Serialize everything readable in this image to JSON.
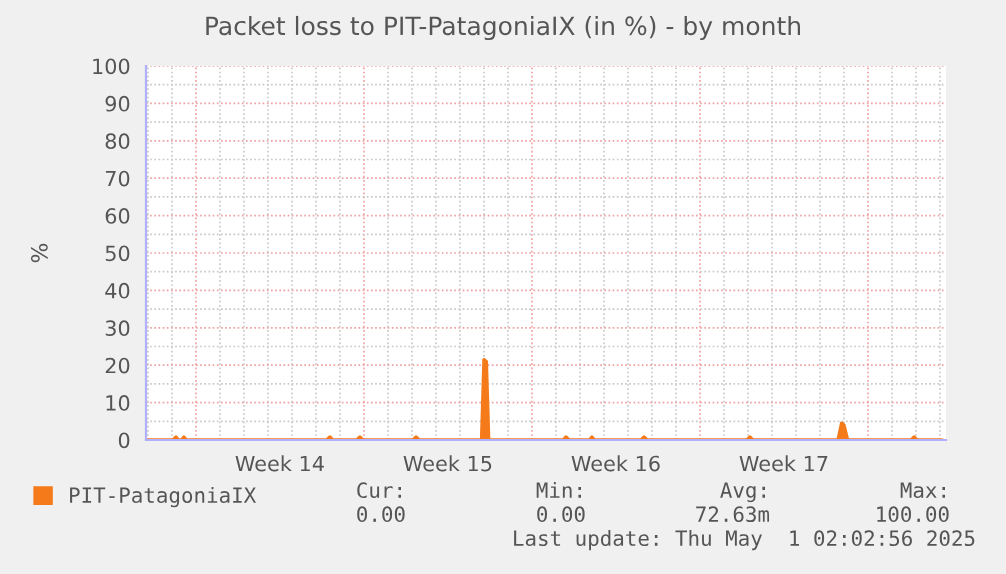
{
  "chart_data": {
    "type": "area",
    "title": "Packet loss to PIT-PatagoniaIX (in %) - by month",
    "ylabel": "%",
    "series": [
      {
        "name": "PIT-PatagoniaIX",
        "color": "#f57a1a",
        "x": [
          "2025-03-28T22:05",
          "2025-03-30T01:12",
          "2025-03-30T04:05",
          "2025-03-30T06:43",
          "2025-03-30T09:36",
          "2025-03-30T12:00",
          "2025-03-30T14:24",
          "2025-04-05T10:48",
          "2025-04-05T13:55",
          "2025-04-05T16:48",
          "2025-04-06T16:48",
          "2025-04-06T19:55",
          "2025-04-06T22:48",
          "2025-04-09T01:12",
          "2025-04-09T04:05",
          "2025-04-09T07:12",
          "2025-04-11T21:36",
          "2025-04-12T00:00",
          "2025-04-12T02:24",
          "2025-04-12T04:48",
          "2025-04-15T07:12",
          "2025-04-15T10:05",
          "2025-04-15T13:12",
          "2025-04-16T09:36",
          "2025-04-16T12:00",
          "2025-04-16T14:24",
          "2025-04-18T13:12",
          "2025-04-18T16:05",
          "2025-04-18T19:12",
          "2025-04-22T22:48",
          "2025-04-23T01:55",
          "2025-04-23T04:48",
          "2025-04-26T18:00",
          "2025-04-26T21:36",
          "2025-04-27T00:00",
          "2025-04-27T03:36",
          "2025-04-29T19:12",
          "2025-04-29T22:05",
          "2025-04-30T01:12",
          "2025-05-01T02:00"
        ],
        "values": [
          0,
          0,
          0.8,
          0,
          0,
          0.8,
          0,
          0,
          0.8,
          0,
          0,
          0.8,
          0,
          0,
          0.8,
          0,
          0,
          21.5,
          21,
          0,
          0,
          0.8,
          0,
          0,
          0.8,
          0,
          0,
          0.8,
          0,
          0,
          0.8,
          0,
          0,
          4.5,
          4,
          0,
          0,
          0.8,
          0,
          0
        ]
      }
    ],
    "xlim": [
      "2025-03-28T22:05",
      "2025-05-01T06:00"
    ],
    "xticks": [
      {
        "value": "2025-03-29",
        "label": null
      },
      {
        "value": "2025-03-30",
        "label": null
      },
      {
        "value": "2025-03-31",
        "label": null
      },
      {
        "value": "2025-04-01",
        "label": null
      },
      {
        "value": "2025-04-02",
        "label": null
      },
      {
        "value": "2025-04-03",
        "label": null
      },
      {
        "value": "2025-04-03T12:00",
        "label": "Week 14"
      },
      {
        "value": "2025-04-04",
        "label": null
      },
      {
        "value": "2025-04-05",
        "label": null
      },
      {
        "value": "2025-04-06",
        "label": null
      },
      {
        "value": "2025-04-07",
        "label": null
      },
      {
        "value": "2025-04-08",
        "label": null
      },
      {
        "value": "2025-04-09",
        "label": null
      },
      {
        "value": "2025-04-10",
        "label": null
      },
      {
        "value": "2025-04-10T12:00",
        "label": "Week 15"
      },
      {
        "value": "2025-04-11",
        "label": null
      },
      {
        "value": "2025-04-12",
        "label": null
      },
      {
        "value": "2025-04-13",
        "label": null
      },
      {
        "value": "2025-04-14",
        "label": null
      },
      {
        "value": "2025-04-15",
        "label": null
      },
      {
        "value": "2025-04-16",
        "label": null
      },
      {
        "value": "2025-04-17",
        "label": null
      },
      {
        "value": "2025-04-17T12:00",
        "label": "Week 16"
      },
      {
        "value": "2025-04-18",
        "label": null
      },
      {
        "value": "2025-04-19",
        "label": null
      },
      {
        "value": "2025-04-20",
        "label": null
      },
      {
        "value": "2025-04-21",
        "label": null
      },
      {
        "value": "2025-04-22",
        "label": null
      },
      {
        "value": "2025-04-23",
        "label": null
      },
      {
        "value": "2025-04-24",
        "label": null
      },
      {
        "value": "2025-04-24T12:00",
        "label": "Week 17"
      },
      {
        "value": "2025-04-25",
        "label": null
      },
      {
        "value": "2025-04-26",
        "label": null
      },
      {
        "value": "2025-04-27",
        "label": null
      },
      {
        "value": "2025-04-28",
        "label": null
      },
      {
        "value": "2025-04-29",
        "label": null
      },
      {
        "value": "2025-04-30",
        "label": null
      },
      {
        "value": "2025-05-01",
        "label": null
      }
    ],
    "ylim": [
      0,
      100
    ],
    "yticks": [
      0,
      {
        "value": 5,
        "label": null
      },
      10,
      {
        "value": 15,
        "label": null
      },
      20,
      {
        "value": 25,
        "label": null
      },
      30,
      {
        "value": 35,
        "label": null
      },
      40,
      {
        "value": 45,
        "label": null
      },
      50,
      {
        "value": 55,
        "label": null
      },
      60,
      {
        "value": 65,
        "label": null
      },
      70,
      {
        "value": 75,
        "label": null
      },
      80,
      {
        "value": 85,
        "label": null
      },
      90,
      {
        "value": 95,
        "label": null
      },
      100
    ],
    "grid": true,
    "legend": "bottom",
    "annotations": [
      "Cur:",
      "0.00",
      "Min:",
      "0.00",
      "Avg:",
      "72.63m",
      "Max:",
      "100.00",
      "Last update: Thu May  1 02:02:56 2025"
    ]
  }
}
